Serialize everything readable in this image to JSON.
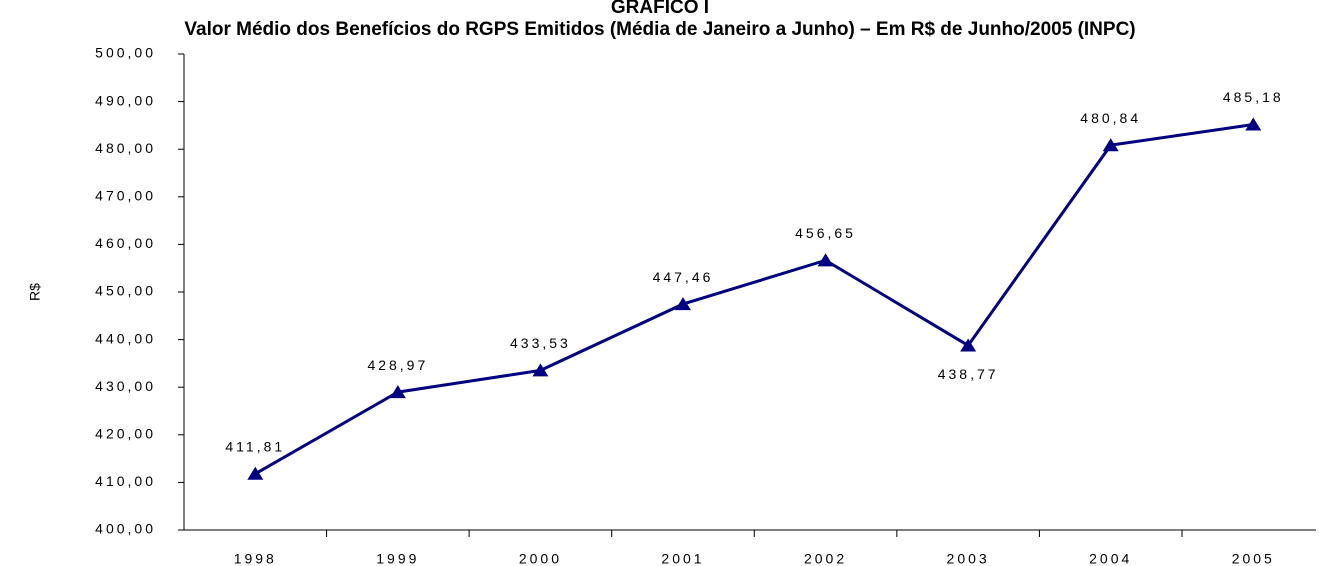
{
  "chart_data": {
    "type": "line",
    "supertitle": "GRÁFICO I",
    "title": "Valor Médio dos Benefícios do RGPS Emitidos (Média de Janeiro a Junho) – Em R$ de Junho/2005 (INPC)",
    "y_label": "R$",
    "categories": [
      "1998",
      "1999",
      "2000",
      "2001",
      "2002",
      "2003",
      "2004",
      "2005"
    ],
    "series": [
      {
        "name": "R$",
        "color": "#000080",
        "values": [
          411.81,
          428.97,
          433.53,
          447.46,
          456.65,
          438.77,
          480.84,
          485.18
        ],
        "value_labels": [
          "411,81",
          "428,97",
          "433,53",
          "447,46",
          "456,65",
          "438,77",
          "480,84",
          "485,18"
        ]
      }
    ],
    "ylim": [
      400,
      500
    ],
    "yticks": [
      {
        "value": 400,
        "label": "400,00"
      },
      {
        "value": 410,
        "label": "410,00"
      },
      {
        "value": 420,
        "label": "420,00"
      },
      {
        "value": 430,
        "label": "430,00"
      },
      {
        "value": 440,
        "label": "440,00"
      },
      {
        "value": 450,
        "label": "450,00"
      },
      {
        "value": 460,
        "label": "460,00"
      },
      {
        "value": 470,
        "label": "470,00"
      },
      {
        "value": 480,
        "label": "480,00"
      },
      {
        "value": 490,
        "label": "490,00"
      },
      {
        "value": 500,
        "label": "500,00"
      }
    ],
    "grid": false
  }
}
